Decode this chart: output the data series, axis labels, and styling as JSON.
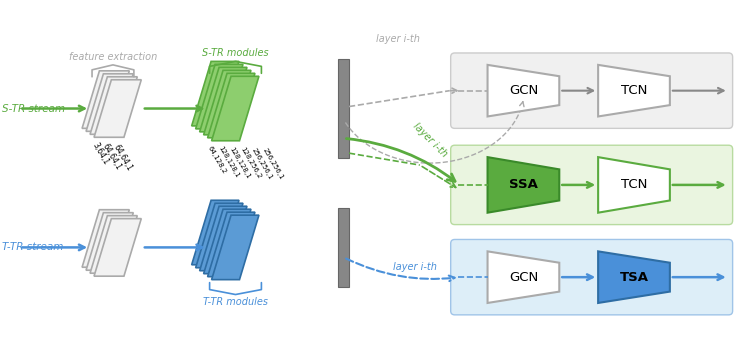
{
  "bg_color": "#ffffff",
  "gray_color": "#aaaaaa",
  "green_color": "#5aab3f",
  "blue_color": "#4a90d9",
  "light_green_bg": "#eaf5e0",
  "light_blue_bg": "#ddeef8",
  "light_gray_bg": "#f0f0f0",
  "stream_labels": [
    "S-TR stream",
    "T-TR stream"
  ],
  "dim_labels_gray": [
    "3,64,1",
    "64,64,1",
    "64,64,1"
  ],
  "dim_labels_green": [
    "64,128,2",
    "128,128,1",
    "128,128,1",
    "128,256,2",
    "256,256,1",
    "256,256,1"
  ]
}
